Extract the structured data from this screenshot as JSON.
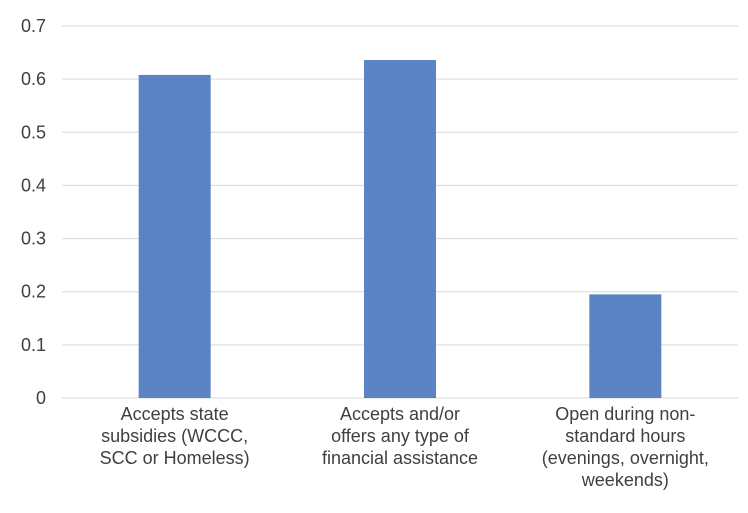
{
  "chart_data": {
    "type": "bar",
    "categories": [
      [
        "Accepts state",
        "subsidies (WCCC,",
        "SCC or Homeless)"
      ],
      [
        "Accepts and/or",
        "offers any type of",
        "financial assistance"
      ],
      [
        "Open during non-",
        "standard hours",
        "(evenings, overnight,",
        "weekends)"
      ]
    ],
    "values": [
      0.608,
      0.636,
      0.195
    ],
    "ylim": [
      0,
      0.7
    ],
    "yticks": [
      0,
      0.1,
      0.2,
      0.3,
      0.4,
      0.5,
      0.6,
      0.7
    ],
    "ytick_labels": [
      "0",
      "0.1",
      "0.2",
      "0.3",
      "0.4",
      "0.5",
      "0.6",
      "0.7"
    ],
    "grid": true,
    "title": "",
    "xlabel": "",
    "ylabel": "",
    "colors": {
      "bar": "#5B84C4",
      "grid": "#D9D9D9",
      "text": "#404040"
    }
  }
}
